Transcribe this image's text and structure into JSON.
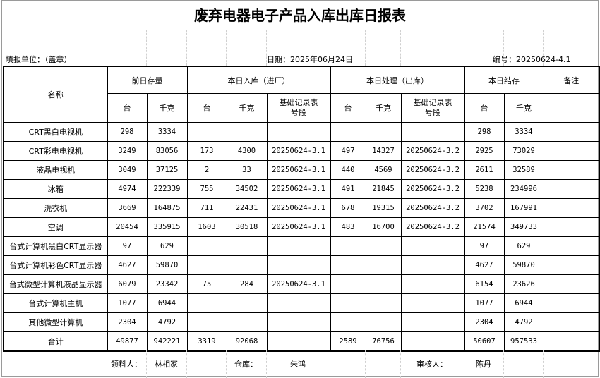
{
  "title": "废弃电器电子产品入库出库日报表",
  "info": {
    "unit": "填报单位：（盖章）",
    "date": "日期：2025年06月24日",
    "number": "编号：20250624-4.1"
  },
  "header": {
    "name": "名称",
    "prev_stock": "前日存量",
    "in": "本日入库（进厂）",
    "out": "本日处理（出库）",
    "balance": "本日结存",
    "remark": "备注",
    "unit_tai": "台",
    "unit_kg": "千克",
    "record": "基础记录表号段"
  },
  "rows": [
    [
      "CRT黑白电视机",
      "298",
      "3334",
      "",
      "",
      "",
      "",
      "",
      "",
      "298",
      "3334",
      ""
    ],
    [
      "CRT彩电电视机",
      "3249",
      "83056",
      "173",
      "4300",
      "20250624-3.1",
      "497",
      "14327",
      "20250624-3.2",
      "2925",
      "73029",
      ""
    ],
    [
      "液晶电视机",
      "3049",
      "37125",
      "2",
      "33",
      "20250624-3.1",
      "440",
      "4569",
      "20250624-3.2",
      "2611",
      "32589",
      ""
    ],
    [
      "冰箱",
      "4974",
      "222339",
      "755",
      "34502",
      "20250624-3.1",
      "491",
      "21845",
      "20250624-3.2",
      "5238",
      "234996",
      ""
    ],
    [
      "洗衣机",
      "3669",
      "164875",
      "711",
      "22431",
      "20250624-3.1",
      "678",
      "19315",
      "20250624-3.2",
      "3702",
      "167991",
      ""
    ],
    [
      "空调",
      "20454",
      "335915",
      "1603",
      "30518",
      "20250624-3.1",
      "483",
      "16700",
      "20250624-3.2",
      "21574",
      "349733",
      ""
    ],
    [
      "台式计算机黑白CRT显示器",
      "97",
      "629",
      "",
      "",
      "",
      "",
      "",
      "",
      "97",
      "629",
      ""
    ],
    [
      "台式计算机彩色CRT显示器",
      "4627",
      "59870",
      "",
      "",
      "",
      "",
      "",
      "",
      "4627",
      "59870",
      ""
    ],
    [
      "台式微型计算机液晶显示器",
      "6079",
      "23342",
      "75",
      "284",
      "20250624-3.1",
      "",
      "",
      "",
      "6154",
      "23626",
      ""
    ],
    [
      "台式计算机主机",
      "1077",
      "6944",
      "",
      "",
      "",
      "",
      "",
      "",
      "1077",
      "6944",
      ""
    ],
    [
      "其他微型计算机",
      "2304",
      "4792",
      "",
      "",
      "",
      "",
      "",
      "",
      "2304",
      "4792",
      ""
    ],
    [
      "合计",
      "49877",
      "942221",
      "3319",
      "92068",
      "",
      "2589",
      "76756",
      "",
      "50607",
      "957533",
      ""
    ]
  ],
  "footer": {
    "receiver_label": "领料人：",
    "receiver": "林相家",
    "warehouse_label": "仓库：",
    "warehouse": "朱鸿",
    "reviewer_label": "审核人：",
    "reviewer": "陈丹"
  }
}
